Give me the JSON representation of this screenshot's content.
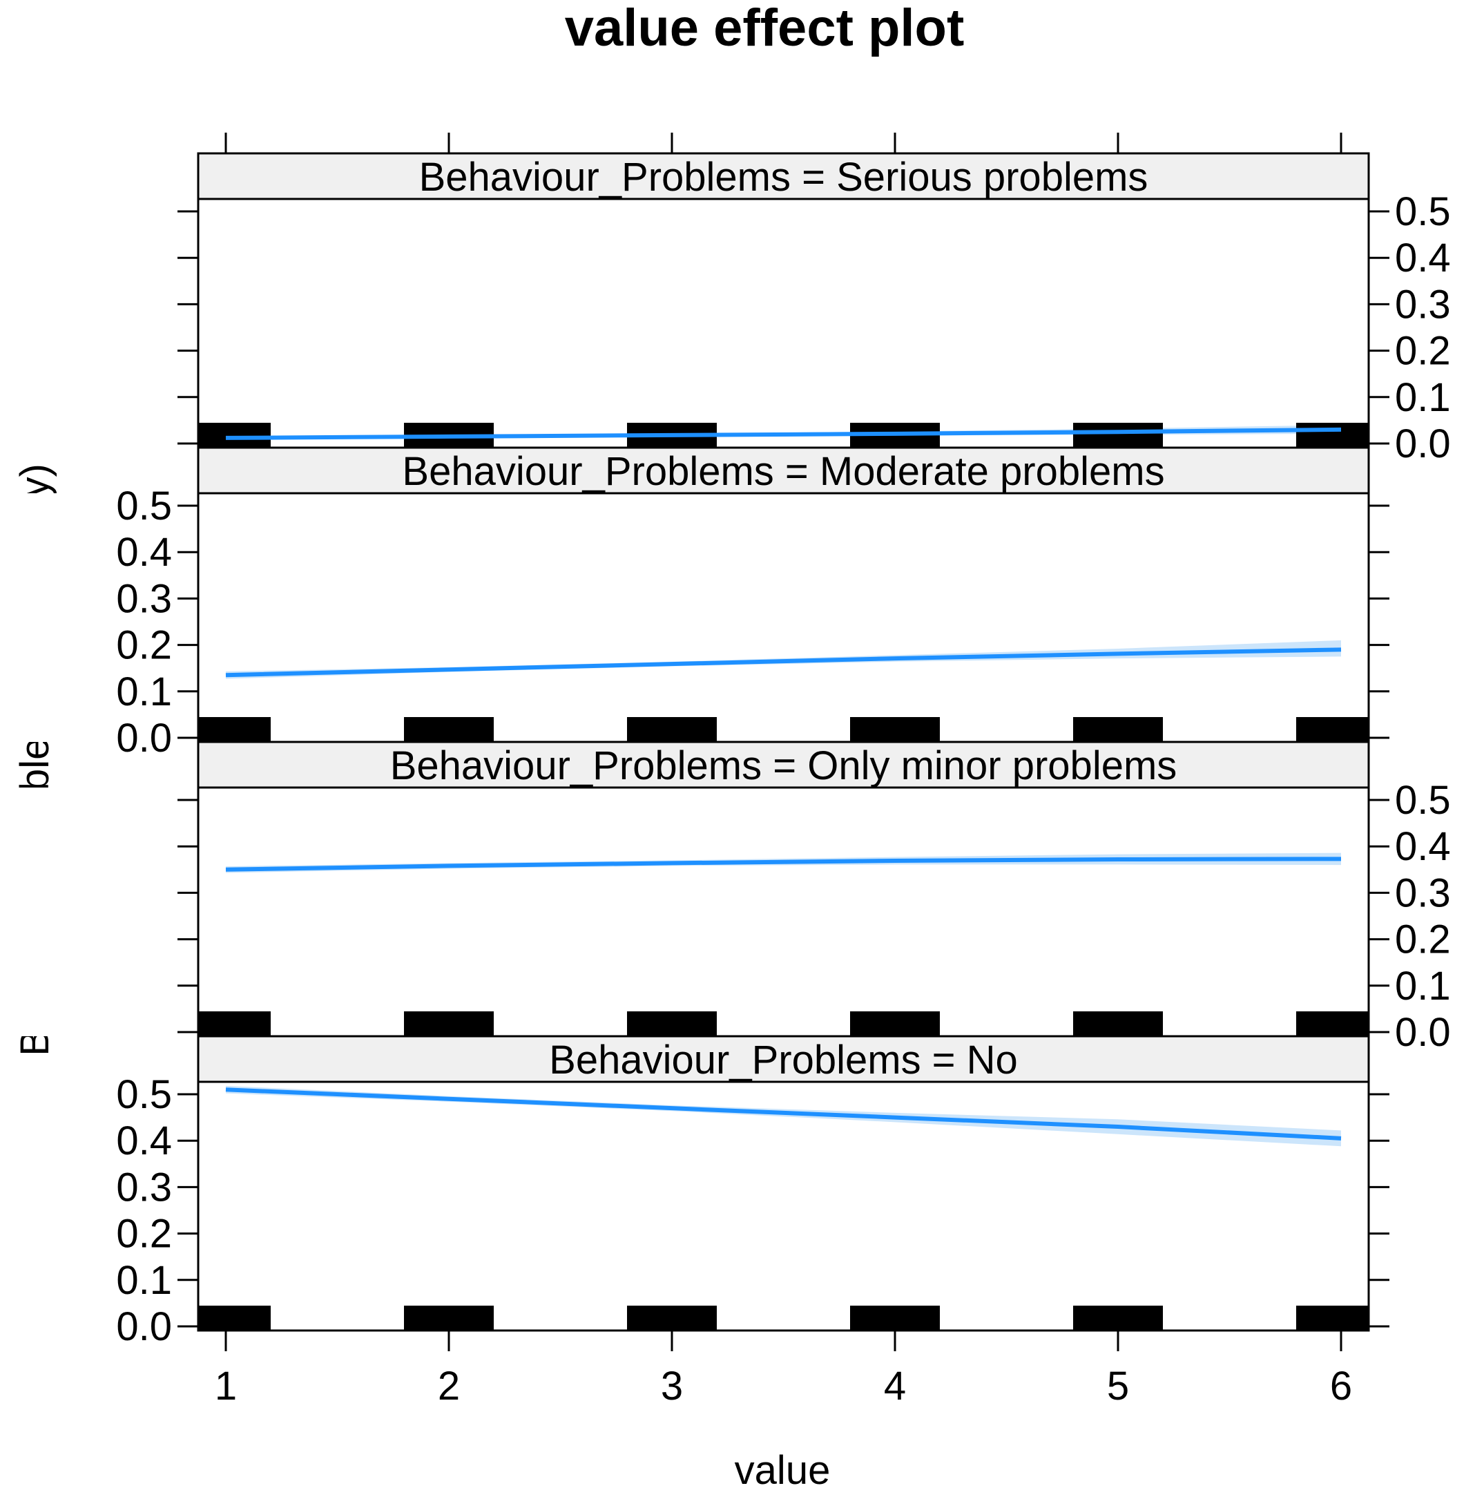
{
  "chart_data": {
    "type": "line",
    "title": "value effect plot",
    "xlabel": "value",
    "ylabel": "Behaviour_Problems (probability)",
    "xlim": [
      1,
      6
    ],
    "ylim": [
      0,
      0.5
    ],
    "x_ticks": [
      "1",
      "2",
      "3",
      "4",
      "5",
      "6"
    ],
    "y_ticks": [
      "0.0",
      "0.1",
      "0.2",
      "0.3",
      "0.4",
      "0.5"
    ],
    "line_color": "#1e90ff",
    "band_color": "#cce5fb",
    "rug_color": "#000000",
    "strip_color": "#f0f0f0",
    "rug_x": [
      1,
      2,
      3,
      4,
      5,
      6
    ],
    "panels": [
      {
        "strip_label": "Behaviour_Problems = Serious problems",
        "x": [
          1,
          2,
          3,
          4,
          5,
          6
        ],
        "values": [
          0.012,
          0.015,
          0.018,
          0.021,
          0.025,
          0.03
        ],
        "lower": [
          0.009,
          0.012,
          0.015,
          0.017,
          0.019,
          0.021
        ],
        "upper": [
          0.015,
          0.018,
          0.021,
          0.026,
          0.032,
          0.04
        ]
      },
      {
        "strip_label": "Behaviour_Problems = Moderate problems",
        "x": [
          1,
          2,
          3,
          4,
          5,
          6
        ],
        "values": [
          0.135,
          0.147,
          0.159,
          0.171,
          0.181,
          0.19
        ],
        "lower": [
          0.127,
          0.142,
          0.154,
          0.164,
          0.171,
          0.175
        ],
        "upper": [
          0.143,
          0.152,
          0.164,
          0.178,
          0.192,
          0.21
        ]
      },
      {
        "strip_label": "Behaviour_Problems = Only minor problems",
        "x": [
          1,
          2,
          3,
          4,
          5,
          6
        ],
        "values": [
          0.35,
          0.358,
          0.364,
          0.369,
          0.372,
          0.373
        ],
        "lower": [
          0.343,
          0.352,
          0.358,
          0.361,
          0.361,
          0.36
        ],
        "upper": [
          0.357,
          0.364,
          0.37,
          0.377,
          0.383,
          0.386
        ]
      },
      {
        "strip_label": "Behaviour_Problems = No",
        "x": [
          1,
          2,
          3,
          4,
          5,
          6
        ],
        "values": [
          0.51,
          0.49,
          0.47,
          0.45,
          0.43,
          0.405
        ],
        "lower": [
          0.502,
          0.484,
          0.464,
          0.44,
          0.414,
          0.388
        ],
        "upper": [
          0.518,
          0.496,
          0.476,
          0.46,
          0.446,
          0.422
        ]
      }
    ]
  }
}
